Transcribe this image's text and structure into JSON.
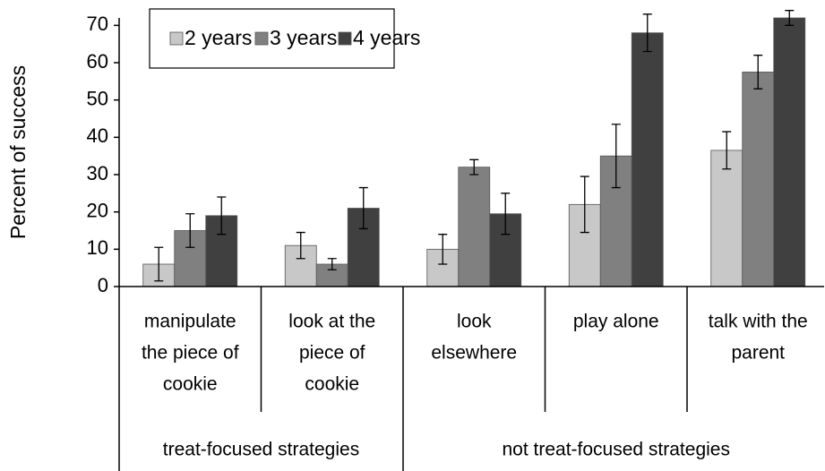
{
  "chart_data": {
    "type": "bar",
    "y_label": "Percent of success",
    "categories": [
      [
        "manipulate",
        "the piece of",
        "cookie"
      ],
      [
        "look at the",
        "piece of",
        "cookie"
      ],
      [
        "look",
        "elsewhere"
      ],
      [
        "play alone"
      ],
      [
        "talk with the",
        "parent"
      ]
    ],
    "groups": [
      {
        "label": "treat-focused strategies",
        "count": 2
      },
      {
        "label": "not treat-focused strategies",
        "count": 3
      }
    ],
    "series": [
      {
        "name": "2 years",
        "color": "#c8c8c8",
        "values": [
          6,
          11,
          10,
          22,
          36.5
        ],
        "errors": [
          4.5,
          3.5,
          4,
          7.5,
          5
        ]
      },
      {
        "name": "3 years",
        "color": "#808080",
        "values": [
          15,
          6,
          32,
          35,
          57.5
        ],
        "errors": [
          4.5,
          1.5,
          2,
          8.5,
          4.5
        ]
      },
      {
        "name": "4 years",
        "color": "#404040",
        "values": [
          19,
          21,
          19.5,
          68,
          72
        ],
        "errors": [
          5,
          5.5,
          5.5,
          5,
          2
        ]
      }
    ],
    "ylim": [
      0,
      72
    ],
    "yticks": [
      0,
      10,
      20,
      30,
      40,
      50,
      60,
      70
    ],
    "legend": "top-left"
  }
}
